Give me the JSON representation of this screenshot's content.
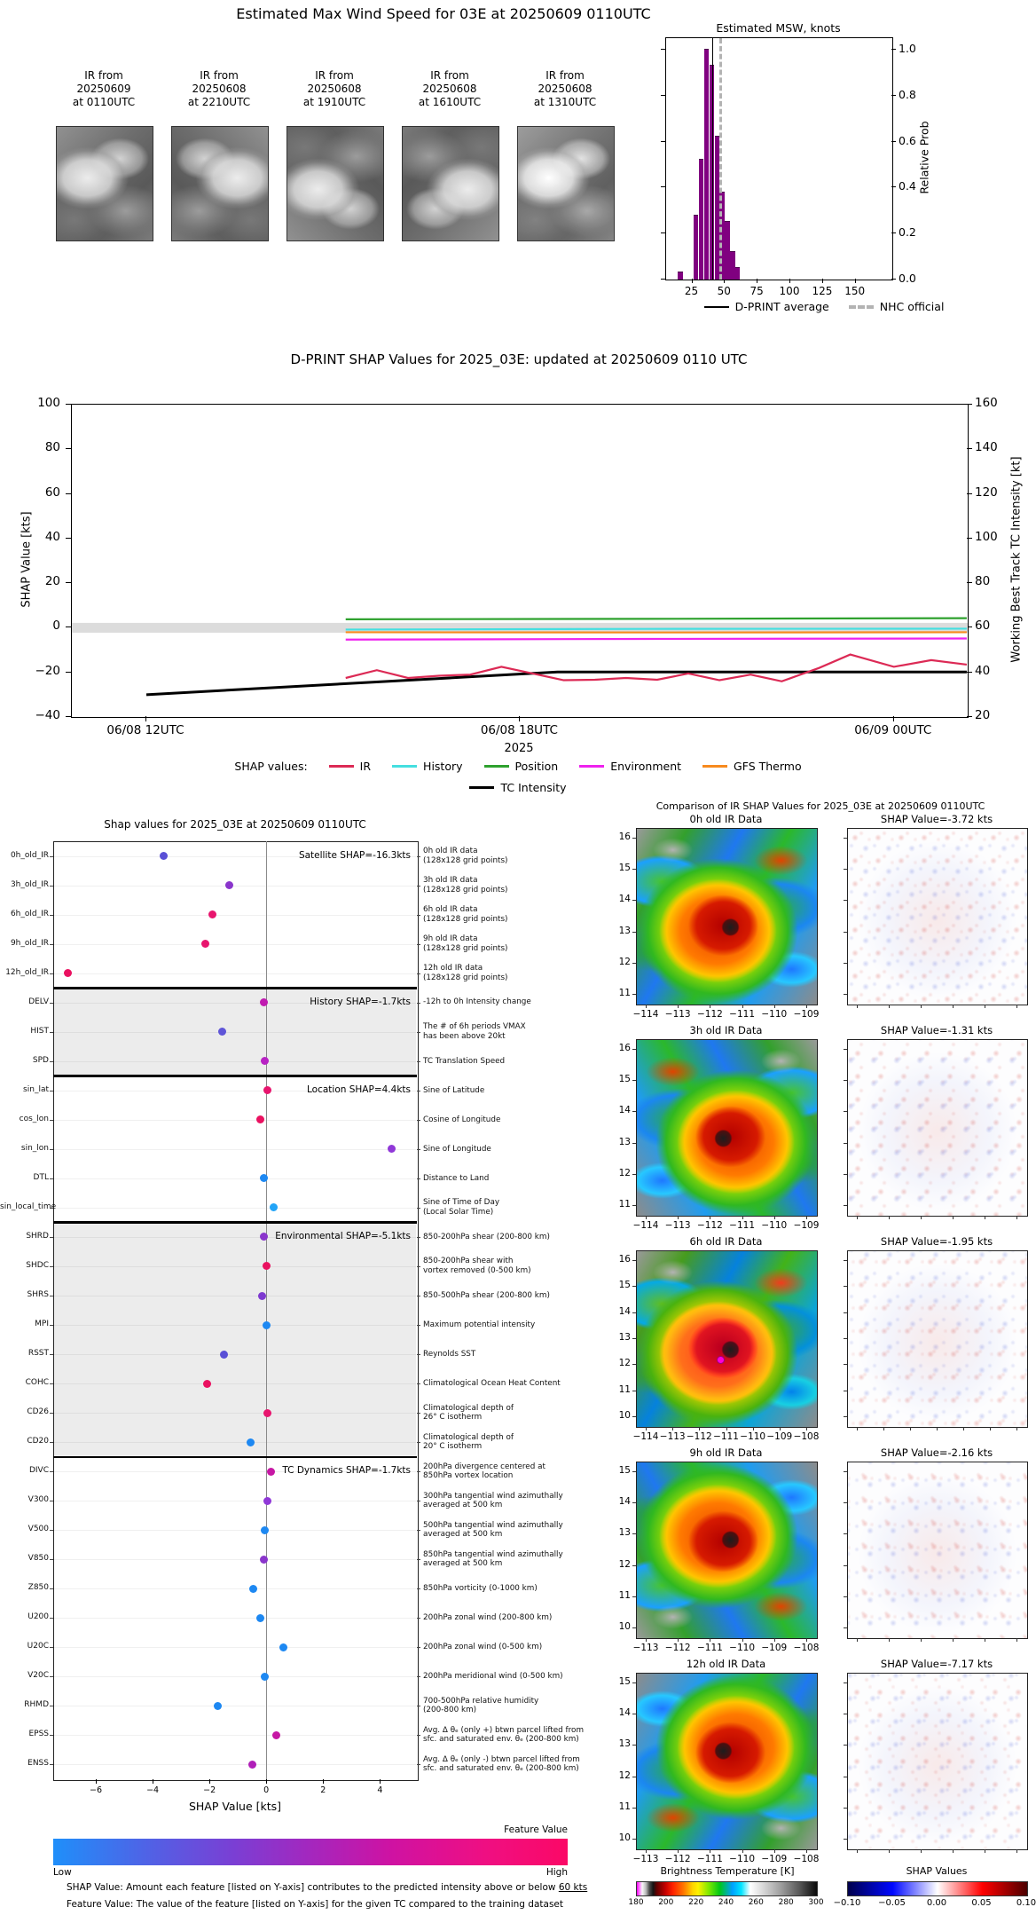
{
  "top": {
    "title": "Estimated Max Wind Speed for 03E at 20250609 0110UTC",
    "thumbnails": [
      {
        "lines": [
          "IR from",
          "20250609",
          "at 0110UTC"
        ]
      },
      {
        "lines": [
          "IR from",
          "20250608",
          "at 2210UTC"
        ]
      },
      {
        "lines": [
          "IR from",
          "20250608",
          "at 1910UTC"
        ]
      },
      {
        "lines": [
          "IR from",
          "20250608",
          "at 1610UTC"
        ]
      },
      {
        "lines": [
          "IR from",
          "20250608",
          "at 1310UTC"
        ]
      }
    ]
  },
  "chart_data": [
    {
      "type": "bar",
      "title": "Estimated MSW, knots",
      "ylabel_right": "Relative Prob",
      "xticks": [
        25,
        50,
        75,
        100,
        125,
        150
      ],
      "yticks": [
        0.0,
        0.2,
        0.4,
        0.6,
        0.8,
        1.0
      ],
      "xlim": [
        5,
        178
      ],
      "ylim": [
        0,
        1.05
      ],
      "bar_color": "#800080",
      "bins": [
        {
          "left": 14,
          "width": 4,
          "h": 0.03
        },
        {
          "left": 26,
          "width": 4,
          "h": 0.28
        },
        {
          "left": 30,
          "width": 4,
          "h": 0.52
        },
        {
          "left": 34,
          "width": 4,
          "h": 1.0
        },
        {
          "left": 38,
          "width": 4,
          "h": 0.93
        },
        {
          "left": 42,
          "width": 4,
          "h": 0.62
        },
        {
          "left": 46,
          "width": 4,
          "h": 0.38
        },
        {
          "left": 50,
          "width": 4,
          "h": 0.25
        },
        {
          "left": 54,
          "width": 4,
          "h": 0.12
        },
        {
          "left": 58,
          "width": 4,
          "h": 0.05
        }
      ],
      "vlines": [
        {
          "label": "D-PRINT average",
          "x": 40,
          "style": "solid",
          "color": "#000000"
        },
        {
          "label": "NHC official",
          "x": 45.5,
          "style": "dashed",
          "color": "#b3b3b3"
        }
      ]
    },
    {
      "type": "line",
      "title": "D-PRINT SHAP Values for 2025_03E: updated at 20250609 0110 UTC",
      "ylabel_left": "SHAP Value [kts]",
      "ylabel_right": "Working Best Track TC Intensity [kt]",
      "xlabel": "2025",
      "yticks_left": [
        -40,
        -20,
        0,
        20,
        40,
        60,
        80,
        100
      ],
      "yticks_right": [
        20,
        40,
        60,
        80,
        100,
        120,
        140,
        160
      ],
      "ylim": [
        -40,
        100
      ],
      "xtick_labels": [
        "06/08 12UTC",
        "06/08 18UTC",
        "06/09 00UTC"
      ],
      "xtick_hours": [
        0,
        6,
        12
      ],
      "zero_band": [
        -2.2,
        2.2
      ],
      "legend_title": "SHAP values:",
      "series": [
        {
          "name": "TC Intensity",
          "color": "#000000",
          "x": [
            0,
            6.6,
            13.17
          ],
          "y": [
            -30,
            -19.8,
            -19.8
          ]
        },
        {
          "name": "Environment",
          "color": "#ee22ee",
          "x": [
            3.2,
            8,
            13.17
          ],
          "y": [
            -5.3,
            -5.0,
            -4.8
          ]
        },
        {
          "name": "GFS Thermo",
          "color": "#f78a1e",
          "x": [
            3.2,
            8,
            13.17
          ],
          "y": [
            -2.0,
            -2.1,
            -2.0
          ]
        },
        {
          "name": "History",
          "color": "#45dfe0",
          "x": [
            3.2,
            8,
            13.17
          ],
          "y": [
            -0.8,
            -0.5,
            -0.4
          ]
        },
        {
          "name": "Position",
          "color": "#2ea12e",
          "x": [
            3.2,
            8,
            13.17
          ],
          "y": [
            3.8,
            4.0,
            4.3
          ]
        },
        {
          "name": "IR",
          "color": "#dc2a55",
          "x": [
            3.2,
            3.7,
            4.2,
            4.7,
            5.2,
            5.7,
            6.2,
            6.7,
            7.2,
            7.7,
            8.2,
            8.7,
            9.2,
            9.7,
            10.2,
            10.8,
            11.3,
            12.0,
            12.6,
            13.17
          ],
          "y": [
            -22.5,
            -19,
            -22.5,
            -21.5,
            -21,
            -17.5,
            -20.5,
            -23.5,
            -23.3,
            -22.5,
            -23.3,
            -20.5,
            -23.5,
            -21,
            -24,
            -18,
            -12,
            -17.5,
            -14.5,
            -16.5
          ]
        }
      ],
      "legend_order": [
        "IR",
        "History",
        "Position",
        "Environment",
        "GFS Thermo",
        "TC Intensity"
      ]
    },
    {
      "type": "scatter",
      "title": "Shap values for 2025_03E at 20250609 0110UTC",
      "xlabel": "SHAP Value [kts]",
      "xticks": [
        -6,
        -4,
        -2,
        0,
        2,
        4
      ],
      "xlim": [
        -7.5,
        5.3
      ],
      "groups": [
        {
          "label": "Satellite SHAP=-16.3kts",
          "shade": "#ffffff",
          "features": [
            {
              "name": "0h_old_IR",
              "value": -3.6,
              "color": "#5a50d6",
              "desc": [
                "0h old IR data",
                "(128x128 grid points)"
              ]
            },
            {
              "name": "3h_old_IR",
              "value": -1.3,
              "color": "#8a35cc",
              "desc": [
                "3h old IR data",
                "(128x128 grid points)"
              ]
            },
            {
              "name": "6h_old_IR",
              "value": -1.9,
              "color": "#e8156e",
              "desc": [
                "6h old IR data",
                "(128x128 grid points)"
              ]
            },
            {
              "name": "9h_old_IR",
              "value": -2.15,
              "color": "#e8156e",
              "desc": [
                "9h old IR data",
                "(128x128 grid points)"
              ]
            },
            {
              "name": "12h_old_IR",
              "value": -7.0,
              "color": "#ea1160",
              "desc": [
                "12h old IR data",
                "(128x128 grid points)"
              ]
            }
          ]
        },
        {
          "label": "History SHAP=-1.7kts",
          "shade": "#ececec",
          "features": [
            {
              "name": "DELV",
              "value": -0.1,
              "color": "#c01bb0",
              "desc": [
                "-12h to 0h Intensity change"
              ]
            },
            {
              "name": "HIST",
              "value": -1.55,
              "color": "#5f55d8",
              "desc": [
                "The # of 6h periods VMAX",
                "has been above 20kt"
              ]
            },
            {
              "name": "SPD",
              "value": -0.05,
              "color": "#b822c4",
              "desc": [
                "TC Translation Speed"
              ]
            }
          ]
        },
        {
          "label": "Location SHAP=4.4kts",
          "shade": "#ffffff",
          "features": [
            {
              "name": "sin_lat",
              "value": 0.05,
              "color": "#e8156e",
              "desc": [
                "Sine of Latitude"
              ]
            },
            {
              "name": "cos_lon",
              "value": -0.2,
              "color": "#ea1160",
              "desc": [
                "Cosine of Longitude"
              ]
            },
            {
              "name": "sin_lon",
              "value": 4.4,
              "color": "#9038d8",
              "desc": [
                "Sine of Longitude"
              ]
            },
            {
              "name": "DTL",
              "value": -0.1,
              "color": "#1d88f2",
              "desc": [
                "Distance to Land"
              ]
            },
            {
              "name": "sin_local_time",
              "value": 0.25,
              "color": "#22a4f7",
              "desc": [
                "Sine of Time of Day",
                "(Local Solar Time)"
              ]
            }
          ]
        },
        {
          "label": "Environmental SHAP=-5.1kts",
          "shade": "#ececec",
          "features": [
            {
              "name": "SHRD",
              "value": -0.1,
              "color": "#8a35cc",
              "desc": [
                "850-200hPa shear (200-800 km)"
              ]
            },
            {
              "name": "SHDC",
              "value": 0.0,
              "color": "#ea1160",
              "desc": [
                "850-200hPa shear with",
                "vortex removed (0-500 km)"
              ]
            },
            {
              "name": "SHRS",
              "value": -0.15,
              "color": "#7e3ad0",
              "desc": [
                "850-500hPa shear (200-800 km)"
              ]
            },
            {
              "name": "MPI",
              "value": 0.0,
              "color": "#1d88f2",
              "desc": [
                "Maximum potential intensity"
              ]
            },
            {
              "name": "RSST",
              "value": -1.5,
              "color": "#5a50d6",
              "desc": [
                "Reynolds SST"
              ]
            },
            {
              "name": "COHC",
              "value": -2.1,
              "color": "#ea1160",
              "desc": [
                "Climatological Ocean Heat Content"
              ]
            },
            {
              "name": "CD26",
              "value": 0.05,
              "color": "#e8156e",
              "desc": [
                "Climatological depth of",
                "26° C isotherm"
              ]
            },
            {
              "name": "CD20",
              "value": -0.55,
              "color": "#1d88f2",
              "desc": [
                "Climatological depth of",
                "20° C isotherm"
              ]
            }
          ]
        },
        {
          "label": "TC Dynamics SHAP=-1.7kts",
          "shade": "#ffffff",
          "features": [
            {
              "name": "DIVC",
              "value": 0.15,
              "color": "#c617a4",
              "desc": [
                "200hPa divergence centered at",
                "850hPa vortex location"
              ]
            },
            {
              "name": "V300",
              "value": 0.05,
              "color": "#9038d8",
              "desc": [
                "300hPa tangential wind azimuthally",
                "averaged at 500 km"
              ]
            },
            {
              "name": "V500",
              "value": -0.05,
              "color": "#1d88f2",
              "desc": [
                "500hPa tangential wind azimuthally",
                "averaged at 500 km"
              ]
            },
            {
              "name": "V850",
              "value": -0.1,
              "color": "#8a35cc",
              "desc": [
                "850hPa tangential wind azimuthally",
                "averaged at 500 km"
              ]
            },
            {
              "name": "Z850",
              "value": -0.45,
              "color": "#1d88f2",
              "desc": [
                "850hPa vorticity (0-1000 km)"
              ]
            },
            {
              "name": "U200",
              "value": -0.2,
              "color": "#1d88f2",
              "desc": [
                "200hPa zonal wind (200-800 km)"
              ]
            },
            {
              "name": "U20C",
              "value": 0.6,
              "color": "#1d88f2",
              "desc": [
                "200hPa zonal wind (0-500 km)"
              ]
            },
            {
              "name": "V20C",
              "value": -0.05,
              "color": "#1d88f2",
              "desc": [
                "200hPa meridional wind (0-500 km)"
              ]
            },
            {
              "name": "RHMD",
              "value": -1.7,
              "color": "#1d88f2",
              "desc": [
                "700-500hPa relative humidity",
                "(200-800 km)"
              ]
            },
            {
              "name": "EPSS",
              "value": 0.35,
              "color": "#c617a4",
              "desc": [
                "Avg. Δ θₑ (only +) btwn parcel lifted from",
                "sfc. and saturated env. θₑ (200-800 km)"
              ]
            },
            {
              "name": "ENSS",
              "value": -0.5,
              "color": "#b01fb8",
              "desc": [
                "Avg. Δ θₑ (only -) btwn parcel lifted from",
                "sfc. and saturated env. θₑ (200-800 km)"
              ]
            }
          ]
        }
      ],
      "colorbar": {
        "title": "Feature Value",
        "low": "Low",
        "high": "High"
      },
      "caption1_text": "SHAP Value: Amount each feature [listed on Y-axis] contributes to the predicted intensity above or below ",
      "caption1_underline": "60 kts",
      "caption2": "Feature Value: The value of the feature [listed on Y-axis] for the given TC compared to the training dataset"
    },
    {
      "type": "heatmap",
      "title": "Comparison of IR SHAP Values for 2025_03E at 20250609 0110UTC",
      "rows": [
        {
          "ir_title": "0h old IR Data",
          "shap_title": "SHAP Value=-3.72 kts",
          "shap_kts": -3.72,
          "yticks": [
            16,
            15,
            14,
            13,
            12,
            11
          ],
          "xticks": [
            -114,
            -113,
            -112,
            -111,
            -110,
            -109
          ],
          "marker": false
        },
        {
          "ir_title": "3h old IR Data",
          "shap_title": "SHAP Value=-1.31 kts",
          "shap_kts": -1.31,
          "yticks": [
            16,
            15,
            14,
            13,
            12,
            11
          ],
          "xticks": [
            -114,
            -113,
            -112,
            -111,
            -110,
            -109
          ],
          "marker": false
        },
        {
          "ir_title": "6h old IR Data",
          "shap_title": "SHAP Value=-1.95 kts",
          "shap_kts": -1.95,
          "yticks": [
            16,
            15,
            14,
            13,
            12,
            11,
            10
          ],
          "xticks": [
            -114,
            -113,
            -112,
            -111,
            -110,
            -109,
            -108
          ],
          "marker": true
        },
        {
          "ir_title": "9h old IR Data",
          "shap_title": "SHAP Value=-2.16 kts",
          "shap_kts": -2.16,
          "yticks": [
            15,
            14,
            13,
            12,
            11,
            10
          ],
          "xticks": [
            -113,
            -112,
            -111,
            -110,
            -109,
            -108
          ],
          "marker": false
        },
        {
          "ir_title": "12h old IR Data",
          "shap_title": "SHAP Value=-7.17 kts",
          "shap_kts": -7.17,
          "yticks": [
            15,
            14,
            13,
            12,
            11,
            10
          ],
          "xticks": [
            -113,
            -112,
            -111,
            -110,
            -109,
            -108
          ],
          "marker": false
        }
      ],
      "bt_colorbar": {
        "title": "Brightness Temperature [K]",
        "ticks": [
          180,
          200,
          220,
          240,
          260,
          280,
          300
        ]
      },
      "shap_colorbar": {
        "title": "SHAP Values",
        "ticks": [
          "-0.10",
          "-0.05",
          "0.00",
          "0.05",
          "0.10"
        ]
      }
    }
  ]
}
